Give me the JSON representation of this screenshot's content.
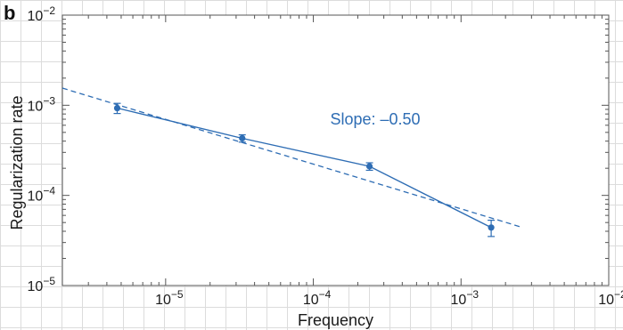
{
  "panel_label": "b",
  "colors": {
    "series": "#2e6db4",
    "grid": "#dcdcdc",
    "frame": "#555555",
    "text": "#1a1a1a"
  },
  "chart_data": {
    "type": "scatter",
    "title": "",
    "xlabel": "Frequency",
    "ylabel": "Regularization rate",
    "xscale": "log",
    "yscale": "log",
    "xlim": [
      2e-06,
      0.01
    ],
    "ylim": [
      1e-05,
      0.01
    ],
    "grid": true,
    "x_ticks": [
      {
        "base": "10",
        "exp": "−5"
      },
      {
        "base": "10",
        "exp": "−4"
      },
      {
        "base": "10",
        "exp": "−3"
      },
      {
        "base": "10",
        "exp": "−2"
      }
    ],
    "y_ticks": [
      {
        "base": "10",
        "exp": "−5"
      },
      {
        "base": "10",
        "exp": "−4"
      },
      {
        "base": "10",
        "exp": "−3"
      },
      {
        "base": "10",
        "exp": "−2"
      }
    ],
    "series": [
      {
        "style": "solid line with markers and error bars",
        "x": [
          4.7e-06,
          3.3e-05,
          0.00024,
          0.0016
        ],
        "y": [
          0.00093,
          0.00043,
          0.00021,
          4.4e-05
        ],
        "y_err_low": [
          0.00012,
          4e-05,
          2e-05,
          9e-06
        ],
        "y_err_high": [
          0.00012,
          4e-05,
          2e-05,
          9e-06
        ]
      },
      {
        "style": "dashed fit line",
        "slope": -0.5,
        "x": [
          2e-06,
          0.0025
        ],
        "y": [
          0.00155,
          4.5e-05
        ]
      }
    ],
    "annotations": [
      {
        "text": "Slope: –0.50",
        "x": 0.00013,
        "y": 0.0007
      }
    ]
  }
}
